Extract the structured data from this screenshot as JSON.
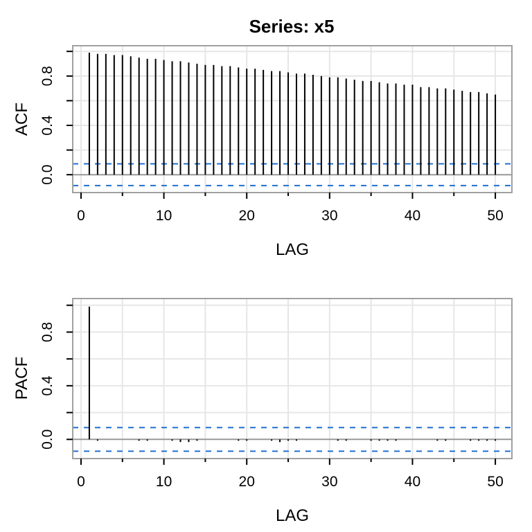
{
  "title": "Series:  x5",
  "chart_data": [
    {
      "type": "bar",
      "ylabel": "ACF",
      "xlabel": "LAG",
      "xlim": [
        -1,
        52
      ],
      "ylim": [
        -0.145,
        1.046
      ],
      "xticks": [
        0,
        10,
        20,
        30,
        40,
        50
      ],
      "yticks": [
        0.0,
        0.4,
        0.8
      ],
      "yminor_ticks": [
        0.0,
        0.2,
        0.4,
        0.6,
        0.8,
        1.0
      ],
      "grid": true,
      "confidence_bound": 0.088,
      "confidence_color": "#1f6fd0",
      "x": [
        1,
        2,
        3,
        4,
        5,
        6,
        7,
        8,
        9,
        10,
        11,
        12,
        13,
        14,
        15,
        16,
        17,
        18,
        19,
        20,
        21,
        22,
        23,
        24,
        25,
        26,
        27,
        28,
        29,
        30,
        31,
        32,
        33,
        34,
        35,
        36,
        37,
        38,
        39,
        40,
        41,
        42,
        43,
        44,
        45,
        46,
        47,
        48,
        49,
        50
      ],
      "values": [
        0.99,
        0.98,
        0.98,
        0.97,
        0.97,
        0.96,
        0.95,
        0.94,
        0.94,
        0.93,
        0.92,
        0.92,
        0.91,
        0.9,
        0.89,
        0.89,
        0.88,
        0.88,
        0.87,
        0.86,
        0.86,
        0.85,
        0.84,
        0.84,
        0.83,
        0.82,
        0.82,
        0.81,
        0.8,
        0.79,
        0.79,
        0.78,
        0.77,
        0.76,
        0.76,
        0.75,
        0.74,
        0.74,
        0.73,
        0.73,
        0.71,
        0.71,
        0.7,
        0.7,
        0.69,
        0.68,
        0.67,
        0.67,
        0.66,
        0.65
      ]
    },
    {
      "type": "bar",
      "ylabel": "PACF",
      "xlabel": "LAG",
      "xlim": [
        -1,
        52
      ],
      "ylim": [
        -0.143,
        1.05
      ],
      "xticks": [
        0,
        10,
        20,
        30,
        40,
        50
      ],
      "yticks": [
        0.0,
        0.4,
        0.8
      ],
      "yminor_ticks": [
        0.0,
        0.2,
        0.4,
        0.6,
        0.8,
        1.0
      ],
      "grid": true,
      "confidence_bound": 0.088,
      "confidence_color": "#1f6fd0",
      "x": [
        1,
        2,
        3,
        4,
        5,
        6,
        7,
        8,
        9,
        10,
        11,
        12,
        13,
        14,
        15,
        16,
        17,
        18,
        19,
        20,
        21,
        22,
        23,
        24,
        25,
        26,
        27,
        28,
        29,
        30,
        31,
        32,
        33,
        34,
        35,
        36,
        37,
        38,
        39,
        40,
        41,
        42,
        43,
        44,
        45,
        46,
        47,
        48,
        49,
        50
      ],
      "values": [
        0.99,
        -0.01,
        0,
        0,
        0,
        0,
        -0.01,
        -0.01,
        0,
        0,
        -0.01,
        -0.02,
        -0.02,
        -0.01,
        0,
        0,
        0,
        0,
        -0.01,
        -0.01,
        0,
        0,
        -0.01,
        -0.02,
        -0.01,
        -0.01,
        0,
        0,
        0,
        0,
        -0.01,
        -0.01,
        0,
        0,
        -0.01,
        -0.01,
        -0.01,
        -0.01,
        0,
        0,
        0,
        0,
        -0.01,
        -0.01,
        0,
        0,
        -0.01,
        -0.01,
        -0.01,
        -0.01
      ]
    }
  ]
}
